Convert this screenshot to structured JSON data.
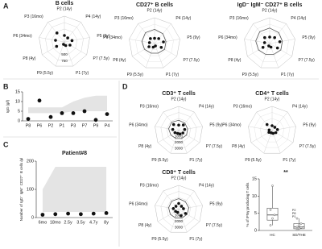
{
  "panel_labels": [
    "A",
    "B",
    "C",
    "D"
  ],
  "chart_data": [
    {
      "type": "radar",
      "title": "B cells",
      "categories": [
        "P2 (14y)",
        "P4 (14y)",
        "P5 (9y)",
        "P7 (7.5y)",
        "P1 (7y)",
        "P9 (5.5y)",
        "P8 (4y)",
        "P6 (34mo)",
        "P3 (16mo)"
      ],
      "values": [
        250,
        200,
        300,
        250,
        150,
        100,
        350,
        350,
        450
      ],
      "rlim": [
        0,
        1000
      ],
      "rticks": [
        500,
        750
      ]
    },
    {
      "type": "radar",
      "title": "CD27⁺ B cells",
      "categories": [
        "P2 (14y)",
        "P4 (14y)",
        "P5 (9y)",
        "P7 (7.5y)",
        "P1 (7y)",
        "P9 (5.5y)",
        "P8 (4y)",
        "P6 (34mo)",
        "P3 (16mo)"
      ],
      "values": [
        200,
        250,
        350,
        300,
        100,
        150,
        250,
        200,
        250
      ],
      "reference": [
        550,
        500,
        450,
        450,
        400,
        400,
        450,
        500,
        550
      ],
      "rlim": [
        0,
        1000
      ]
    },
    {
      "type": "radar",
      "title": "IgD⁻ IgM⁻ CD27⁺ B cells",
      "categories": [
        "P2 (14y)",
        "P4 (14y)",
        "P5 (9y)",
        "P7 (7.5y)",
        "P1 (7y)",
        "P9 (5.5y)",
        "P8 (4y)",
        "P6 (34mo)",
        "P3 (16mo)"
      ],
      "values": [
        250,
        300,
        400,
        350,
        150,
        100,
        300,
        200,
        300
      ],
      "reference": [
        600,
        550,
        500,
        500,
        450,
        450,
        500,
        550,
        600
      ],
      "rlim": [
        0,
        1000
      ]
    },
    {
      "type": "scatter",
      "ylabel": "IgG (g/l)",
      "categories": [
        "P8",
        "P6",
        "P2",
        "P1",
        "P3",
        "P7",
        "P9",
        "P4"
      ],
      "values": [
        1,
        10.5,
        2,
        4,
        4,
        5,
        0.5,
        3.5
      ],
      "band_lower": [
        4,
        4,
        4,
        4,
        5,
        5,
        5,
        5
      ],
      "band_upper": [
        7,
        7,
        7,
        7,
        10,
        12,
        13,
        13
      ],
      "ylim": [
        0,
        15
      ],
      "yticks": [
        0,
        5,
        10,
        15
      ]
    },
    {
      "type": "scatter",
      "title": "Patient#8",
      "ylabel": "Number of IgD⁻ IgM⁻ CD27⁺ B cells /µl",
      "categories": [
        "6mo",
        "18mo",
        "2.5y",
        "3.5y",
        "4.7y",
        "8y"
      ],
      "values": [
        10,
        12,
        14,
        12,
        14,
        16
      ],
      "band_lower": [
        20,
        20,
        20,
        20,
        20,
        20
      ],
      "band_upper": [
        100,
        180,
        180,
        180,
        180,
        180
      ],
      "ylim": [
        0,
        200
      ],
      "yticks": [
        0,
        100,
        200
      ]
    },
    {
      "type": "radar",
      "title": "CD3⁺ T cells",
      "categories": [
        "P2 (14y)",
        "P4 (14y)",
        "P5 (9y)",
        "P7 (7.5y)",
        "P1 (7y)",
        "P9 (5.5y)",
        "P8 (4y)",
        "P6 (34mo)",
        "P3 (16mo)"
      ],
      "values": [
        900,
        1200,
        1000,
        800,
        600,
        500,
        700,
        1000,
        1300
      ],
      "reference": [
        1700,
        1600,
        1500,
        1500,
        1400,
        1400,
        1500,
        1700,
        1800
      ],
      "rlim": [
        0,
        4000
      ],
      "rticks": [
        1000,
        2000,
        3000
      ]
    },
    {
      "type": "radar",
      "title": "CD4⁺ T cells",
      "categories": [
        "P2 (14y)",
        "P4 (14y)",
        "P5 (9y)",
        "P7 (7.5y)",
        "P1 (7y)",
        "P9 (5.5y)",
        "P8 (4y)",
        "P6 (34mo)",
        "P3 (16mo)"
      ],
      "values": [
        800,
        700,
        900,
        700,
        500,
        400,
        600,
        500,
        1300
      ],
      "rlim": [
        0,
        4000
      ]
    },
    {
      "type": "radar",
      "title": "CD8⁺ T cells",
      "categories": [
        "P2 (14y)",
        "P4 (14y)",
        "P5 (9y)",
        "P7 (7.5y)",
        "P1 (7y)",
        "P9 (5.5y)",
        "P8 (4y)",
        "P6 (34mo)",
        "P3 (16mo)"
      ],
      "values": [
        1000,
        700,
        800,
        1300,
        1100,
        500,
        600,
        900,
        700
      ],
      "reference": [
        1800,
        1700,
        1700,
        1600,
        1500,
        1500,
        1600,
        1700,
        1800
      ],
      "rlim": [
        0,
        4000
      ],
      "rticks": [
        1000,
        2000,
        3000
      ]
    },
    {
      "type": "box",
      "ylabel": "% of IFNγ producing T cells",
      "annotation": "**",
      "categories": [
        "HC",
        "SD/THE"
      ],
      "boxes": [
        {
          "min": 1.5,
          "q1": 3,
          "median": 4.5,
          "q3": 6.5,
          "max": 13,
          "points": [
            1.5,
            3.5,
            4.5,
            6,
            13
          ]
        },
        {
          "min": 0.2,
          "q1": 0.5,
          "median": 1,
          "q3": 2,
          "max": 3.5,
          "points": [
            0.2,
            0.5,
            0.8,
            1,
            1.5,
            2,
            3.5
          ]
        }
      ],
      "point_labels": [
        "P2",
        "P8",
        "P1"
      ],
      "ylim": [
        0,
        15
      ],
      "yticks": [
        0,
        5,
        10,
        15
      ]
    }
  ]
}
